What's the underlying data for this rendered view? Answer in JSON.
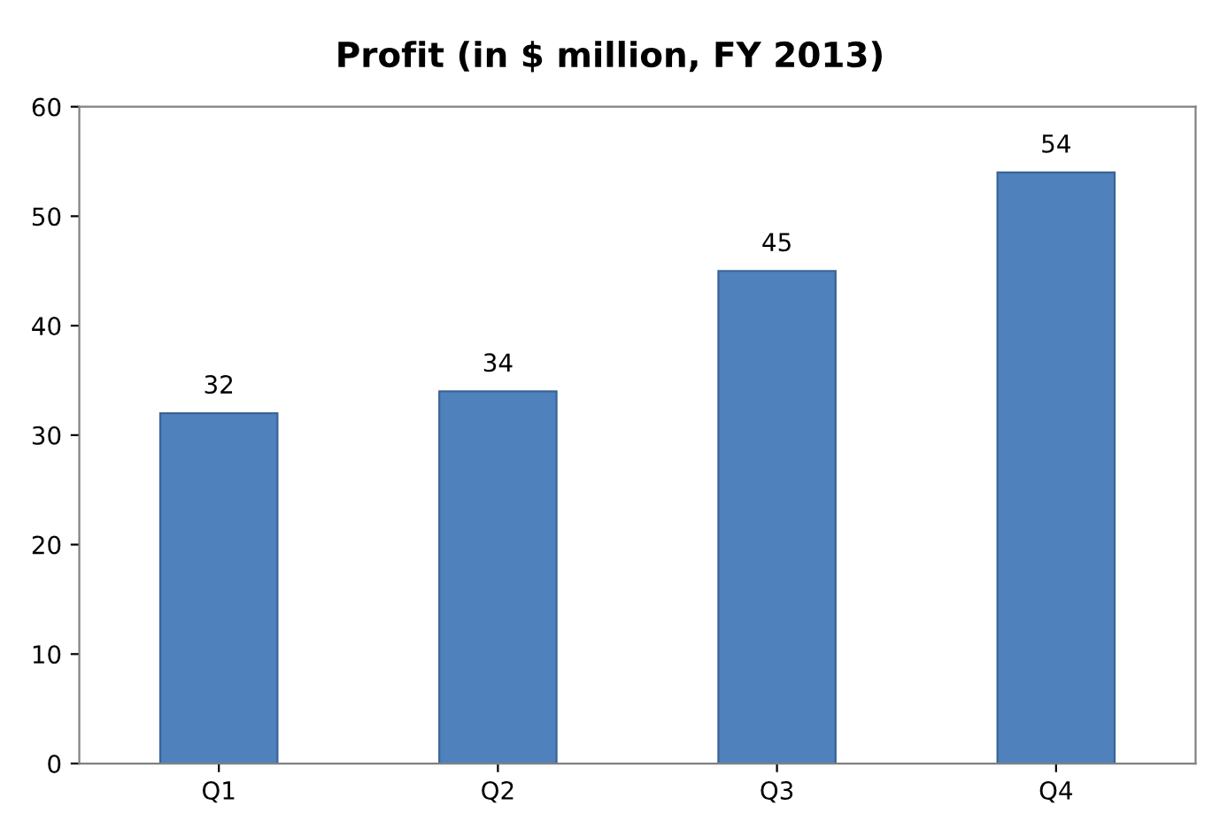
{
  "chart_data": {
    "type": "bar",
    "title": "Profit (in $ million, FY 2013)",
    "categories": [
      "Q1",
      "Q2",
      "Q3",
      "Q4"
    ],
    "values": [
      32,
      34,
      45,
      54
    ],
    "color": "#4f81bd",
    "ylim": [
      0,
      60
    ],
    "yticks": [
      0,
      10,
      20,
      30,
      40,
      50,
      60
    ],
    "grid": false,
    "data_labels": true
  }
}
